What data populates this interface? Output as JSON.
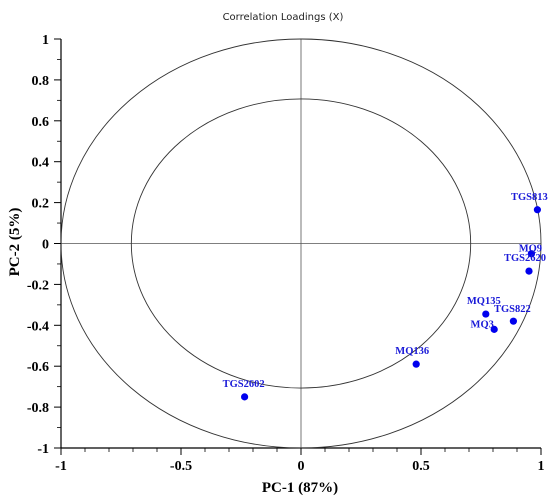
{
  "chart_data": {
    "type": "scatter",
    "title": "Correlation Loadings (X)",
    "xlabel": "PC-1 (87%)",
    "ylabel": "PC-2 (5%)",
    "xlim": [
      -1,
      1
    ],
    "ylim": [
      -1,
      1
    ],
    "x_ticks": [
      -1,
      -0.5,
      0,
      0.5,
      1
    ],
    "x_tick_labels": [
      "-1",
      "-0.5",
      "0",
      "0.5",
      "1"
    ],
    "y_ticks": [
      1,
      0.8,
      0.6,
      0.4,
      0.2,
      0,
      -0.2,
      -0.4,
      -0.6,
      -0.8,
      -1
    ],
    "y_tick_labels": [
      "1",
      "0.8",
      "0.6",
      "0.4",
      "0.2",
      "0",
      "-0.2",
      "-0.4",
      "-0.6",
      "-0.8",
      "-1"
    ],
    "circles": [
      1.0,
      0.707
    ],
    "point_color": "#0000ee",
    "label_color": "#1a1ad8",
    "points": [
      {
        "label": "TGS813",
        "x": 0.985,
        "y": 0.165
      },
      {
        "label": "MQ9",
        "x": 0.96,
        "y": -0.05
      },
      {
        "label": "TGS2620",
        "x": 0.95,
        "y": -0.135
      },
      {
        "label": "MQ135",
        "x": 0.77,
        "y": -0.345
      },
      {
        "label": "TGS822",
        "x": 0.885,
        "y": -0.38
      },
      {
        "label": "MQ3",
        "x": 0.805,
        "y": -0.42
      },
      {
        "label": "MQ136",
        "x": 0.48,
        "y": -0.59
      },
      {
        "label": "TGS2602",
        "x": -0.235,
        "y": -0.75
      }
    ]
  }
}
